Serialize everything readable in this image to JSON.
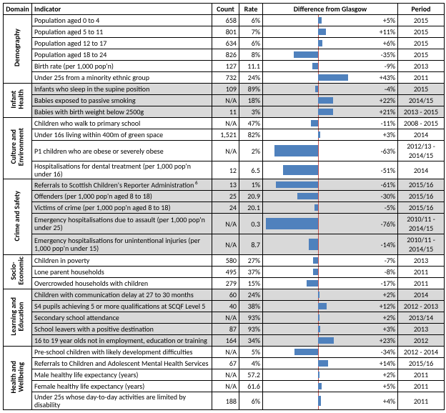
{
  "headers": {
    "domain": "Domain",
    "indicator": "Indicator",
    "count": "Count",
    "rate": "Rate",
    "diff": "Difference from Glasgow",
    "period": "Period"
  },
  "chart": {
    "bar_color": "#4f81bd",
    "axis_color": "#c0504d",
    "shade_color": "#d9d9d9",
    "scale": 80
  },
  "domains": [
    {
      "label": "Demography",
      "rows": [
        {
          "indicator": "Population aged 0 to 4",
          "count": "658",
          "rate": "6%",
          "diff": 5,
          "diff_label": "+5%",
          "period": "2015"
        },
        {
          "indicator": "Population aged 5 to 11",
          "count": "801",
          "rate": "7%",
          "diff": 11,
          "diff_label": "+11%",
          "period": "2015"
        },
        {
          "indicator": "Population aged 12 to 17",
          "count": "634",
          "rate": "6%",
          "diff": 6,
          "diff_label": "+6%",
          "period": "2015"
        },
        {
          "indicator": "Population aged 18 to 24",
          "count": "826",
          "rate": "8%",
          "diff": -35,
          "diff_label": "-35%",
          "period": "2015"
        },
        {
          "indicator": "Birth rate (per 1,000 pop'n)",
          "count": "127",
          "rate": "11.1",
          "diff": -9,
          "diff_label": "-9%",
          "period": "2013"
        },
        {
          "indicator": "Under 25s from a minority ethnic group",
          "count": "732",
          "rate": "24%",
          "diff": 43,
          "diff_label": "+43%",
          "period": "2011"
        }
      ]
    },
    {
      "label": "Infant\nHealth",
      "shaded": true,
      "rows": [
        {
          "indicator": "Infants who sleep in the supine position",
          "count": "109",
          "rate": "89%",
          "diff": -4,
          "diff_label": "-4%",
          "period": "2015"
        },
        {
          "indicator": "Babies exposed to passive smoking",
          "count": "N/A",
          "rate": "18%",
          "diff": 22,
          "diff_label": "+22%",
          "period": "2014/15"
        },
        {
          "indicator": "Babies with birth weight below 2500g",
          "count": "11",
          "rate": "3%",
          "diff": 21,
          "diff_label": "+21%",
          "period": "2013 - 2015"
        }
      ]
    },
    {
      "label": "Culture and\nEnvironment",
      "rows": [
        {
          "indicator": "Children who walk to primary school",
          "count": "N/A",
          "rate": "47%",
          "diff": -11,
          "diff_label": "-11%",
          "period": "2008 - 2015"
        },
        {
          "indicator": "Under 16s living within 400m of green space",
          "count": "1,521",
          "rate": "82%",
          "diff": 3,
          "diff_label": "+3%",
          "period": "2014"
        },
        {
          "indicator": "P1 children who are obese or severely obese",
          "count": "N/A",
          "rate": "2%",
          "diff": -63,
          "diff_label": "-63%",
          "period": "2012/13 - 2014/15"
        },
        {
          "indicator": "Hospitalisations for dental treatment (per 1,000 pop'n under 16)",
          "count": "12",
          "rate": "6.5",
          "diff": -51,
          "diff_label": "-51%",
          "period": "2014"
        }
      ]
    },
    {
      "label": "Crime and Safety",
      "shaded": true,
      "rows": [
        {
          "indicator": "Referrals to Scottish Children's Reporter Administration",
          "sup": "6",
          "count": "13",
          "rate": "1%",
          "diff": -61,
          "diff_label": "-61%",
          "period": "2015/16"
        },
        {
          "indicator": "Offenders (per 1,000 pop'n aged 8 to 18)",
          "count": "25",
          "rate": "20.9",
          "diff": -30,
          "diff_label": "-30%",
          "period": "2015/16"
        },
        {
          "indicator": "Victims of crime (per 1,000 pop'n aged 8 to 18)",
          "count": "24",
          "rate": "20.1",
          "diff": -5,
          "diff_label": "-5%",
          "period": "2015/16"
        },
        {
          "indicator": "Emergency hospitalisations due to assault (per 1,000 pop'n under 25)",
          "count": "N/A",
          "rate": "0.3",
          "diff": -76,
          "diff_label": "-76%",
          "period": "2010/11 - 2014/15"
        },
        {
          "indicator": "Emergency hospitalisations for unintentional injuries (per 1,000 pop'n under 15)",
          "count": "N/A",
          "rate": "8.7",
          "diff": -14,
          "diff_label": "-14%",
          "period": "2010/11 - 2014/15"
        }
      ]
    },
    {
      "label": "Socio-\nEconomic",
      "rows": [
        {
          "indicator": "Children in poverty",
          "count": "580",
          "rate": "27%",
          "diff": -7,
          "diff_label": "-7%",
          "period": "2013"
        },
        {
          "indicator": "Lone parent households",
          "count": "495",
          "rate": "37%",
          "diff": -8,
          "diff_label": "-8%",
          "period": "2011"
        },
        {
          "indicator": "Overcrowded households with children",
          "count": "279",
          "rate": "15%",
          "diff": -17,
          "diff_label": "-17%",
          "period": "2011"
        }
      ]
    },
    {
      "label": "Learning and\nEducation",
      "shaded": true,
      "rows": [
        {
          "indicator": "Children with communication delay at 27 to 30 months",
          "count": "60",
          "rate": "24%",
          "diff": 2,
          "diff_label": "+2%",
          "period": "2014"
        },
        {
          "indicator": "S4 pupils achieving 5 or more qualifications at SCQF Level 5",
          "count": "40",
          "rate": "38%",
          "diff": 12,
          "diff_label": "+12%",
          "period": "2012 - 2013"
        },
        {
          "indicator": "Secondary school attendance",
          "count": "N/A",
          "rate": "93%",
          "diff": 2,
          "diff_label": "+2%",
          "period": "2013/14"
        },
        {
          "indicator": "School leavers with a positive destination",
          "count": "87",
          "rate": "93%",
          "diff": 3,
          "diff_label": "+3%",
          "period": "2013"
        },
        {
          "indicator": "16 to 19 year olds not in employment, education or training",
          "count": "164",
          "rate": "34%",
          "diff": 23,
          "diff_label": "+23%",
          "period": "2012"
        }
      ]
    },
    {
      "label": "Health and\nWellbeing",
      "rows": [
        {
          "indicator": "Pre-school children with likely development difficulties",
          "count": "N/A",
          "rate": "5%",
          "diff": -34,
          "diff_label": "-34%",
          "period": "2012 - 2014"
        },
        {
          "indicator": "Referrals to Children and Adolescent Mental Health Services",
          "count": "67",
          "rate": "4%",
          "diff": 14,
          "diff_label": "+14%",
          "period": "2015/16"
        },
        {
          "indicator": "Male healthy life expectancy (years)",
          "count": "N/A",
          "rate": "57.2",
          "diff": 2,
          "diff_label": "+2%",
          "period": "2011"
        },
        {
          "indicator": "Female healthy life expectancy (years)",
          "count": "N/A",
          "rate": "61.6",
          "diff": 5,
          "diff_label": "+5%",
          "period": "2011"
        },
        {
          "indicator": "Under 25s whose day-to-day activities are limited by disability",
          "count": "188",
          "rate": "6%",
          "diff": 4,
          "diff_label": "+4%",
          "period": "2011"
        }
      ]
    }
  ]
}
